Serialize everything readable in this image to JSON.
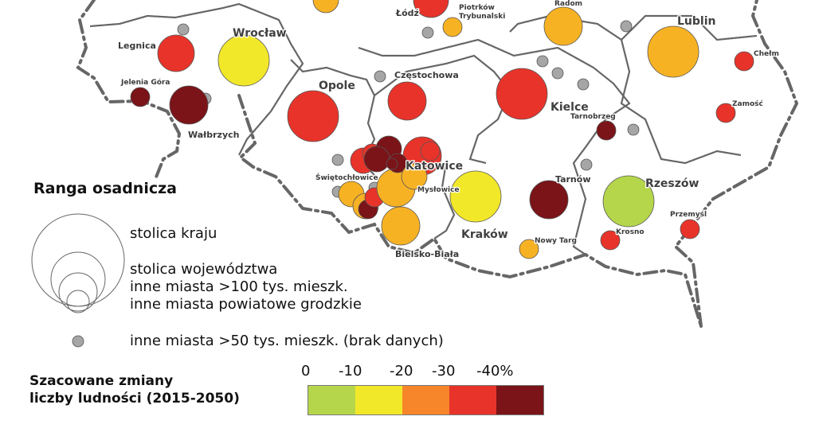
{
  "map": {
    "cities": [
      {
        "name": "Łódź",
        "rank": "",
        "color": "none"
      },
      {
        "name": "Piotrków Trybunalski",
        "color": "#f7b224"
      },
      {
        "name": "Radom",
        "color": "#f7b224"
      },
      {
        "name": "Lublin",
        "color": "#f7b224"
      },
      {
        "name": "Chełm",
        "color": "#e8332a"
      },
      {
        "name": "Legnica",
        "color": "#e8332a"
      },
      {
        "name": "Wrocław",
        "color": "#f2e82a"
      },
      {
        "name": "Jelenia Góra",
        "color": "#7a1418"
      },
      {
        "name": "Wałbrzych",
        "color": "#7a1418"
      },
      {
        "name": "Opole",
        "color": "#e8332a"
      },
      {
        "name": "Częstochowa",
        "color": "#e8332a"
      },
      {
        "name": "Kielce",
        "color": "#e8332a"
      },
      {
        "name": "Tarnobrzeg",
        "color": "#7a1418"
      },
      {
        "name": "Zamość",
        "color": "#e8332a"
      },
      {
        "name": "Katowice",
        "color": "#e8332a"
      },
      {
        "name": "Świętochłowice",
        "color": "#f7b224"
      },
      {
        "name": "Mysłowice",
        "color": "#f7b224"
      },
      {
        "name": "Kraków",
        "color": "#f2e82a"
      },
      {
        "name": "Tarnów",
        "color": "#7a1418"
      },
      {
        "name": "Rzeszów",
        "color": "#b5d64b"
      },
      {
        "name": "Przemyśl",
        "color": "#e8332a"
      },
      {
        "name": "Krosno",
        "color": "#e8332a"
      },
      {
        "name": "Nowy Targ",
        "color": "#f7b224"
      },
      {
        "name": "Bielsko-Biała",
        "color": "#f7b224"
      }
    ],
    "labels": {
      "lodz": "Łódź",
      "piotrkow1": "Piotrków",
      "piotrkow2": "Trybunalski",
      "radom": "Radom",
      "lublin": "Lublin",
      "chelm": "Chełm",
      "legnica": "Legnica",
      "wroclaw": "Wrocław",
      "jelenia": "Jelenia Góra",
      "walbrzych": "Wałbrzych",
      "opole": "Opole",
      "czestochowa": "Częstochowa",
      "kielce": "Kielce",
      "tarnobrzeg": "Tarnobrzeg",
      "zamosc": "Zamość",
      "katowice": "Katowice",
      "swietochlowice": "Świętochłowice",
      "myslowice": "Mysłowice",
      "krakow": "Kraków",
      "tarnow": "Tarnów",
      "rzeszow": "Rzeszów",
      "przemysl": "Przemyśl",
      "krosno": "Krosno",
      "nowytarg": "Nowy Targ",
      "bielsko": "Bielsko-Biała"
    }
  },
  "legend": {
    "title": "Ranga osadnicza",
    "items": [
      "stolica kraju",
      "stolica województwa",
      "inne miasta >100 tys. mieszk.",
      "inne miasta powiatowe grodzkie",
      "inne miasta >50 tys. mieszk. (brak danych)"
    ]
  },
  "scale": {
    "title_line1": "Szacowane zmiany",
    "title_line2": "liczby ludności (2015-2050)",
    "ticks": [
      "0",
      "-10",
      "-20",
      "-30",
      "-40%"
    ],
    "colors": [
      "#b5d64b",
      "#f2e82a",
      "#f7862a",
      "#e8332a",
      "#7a1418"
    ]
  }
}
